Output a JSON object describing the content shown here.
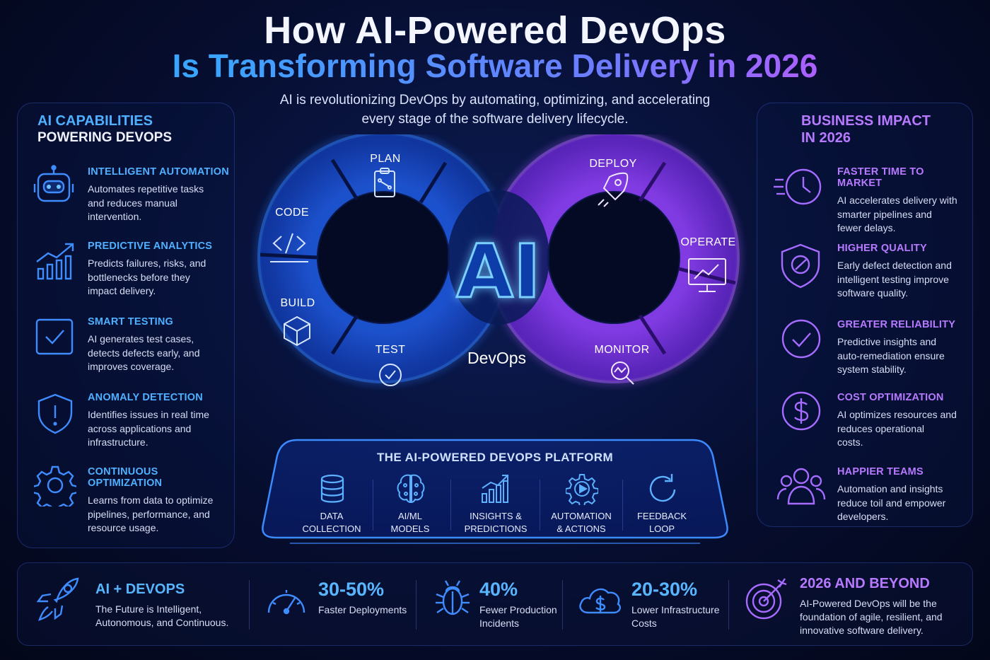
{
  "header": {
    "title_line1": "How AI-Powered DevOps",
    "title_line2": "Is Transforming Software Delivery in 2026",
    "subtitle_line1": "AI is revolutionizing DevOps by automating, optimizing, and accelerating",
    "subtitle_line2": "every stage of the software delivery lifecycle."
  },
  "left_panel": {
    "heading_line1": "AI CAPABILITIES",
    "heading_line2": "POWERING DEVOPS",
    "items": [
      {
        "icon": "robot-icon",
        "title": "Intelligent Automation",
        "desc": [
          "Automates repetitive tasks",
          "and reduces manual",
          "intervention."
        ]
      },
      {
        "icon": "analytics-icon",
        "title": "Predictive Analytics",
        "desc": [
          "Predicts failures, risks, and",
          "bottlenecks before they",
          "impact delivery."
        ]
      },
      {
        "icon": "checkbox-icon",
        "title": "Smart Testing",
        "desc": [
          "AI generates test cases,",
          "detects defects early, and",
          "improves coverage."
        ]
      },
      {
        "icon": "shield-alert-icon",
        "title": "Anomaly Detection",
        "desc": [
          "Identifies issues in real time",
          "across applications and",
          "infrastructure."
        ]
      },
      {
        "icon": "gear-icon",
        "title": "Continuous Optimization",
        "desc": [
          "Learns from data to optimize",
          "pipelines, performance, and",
          "resource usage."
        ]
      }
    ]
  },
  "right_panel": {
    "heading_line1": "BUSINESS IMPACT",
    "heading_line2": "IN 2026",
    "items": [
      {
        "icon": "fast-clock-icon",
        "title": "Faster Time to Market",
        "desc": [
          "AI accelerates delivery with",
          "smarter pipelines and",
          "fewer delays."
        ]
      },
      {
        "icon": "shield-quality-icon",
        "title": "Higher Quality",
        "desc": [
          "Early defect detection and",
          "intelligent testing improve",
          "software quality."
        ]
      },
      {
        "icon": "check-circle-icon",
        "title": "Greater Reliability",
        "desc": [
          "Predictive insights and",
          "auto-remediation ensure",
          "system stability."
        ]
      },
      {
        "icon": "dollar-circle-icon",
        "title": "Cost Optimization",
        "desc": [
          "AI optimizes resources and",
          "reduces operational",
          "costs."
        ]
      },
      {
        "icon": "team-icon",
        "title": "Happier Teams",
        "desc": [
          "Automation and insights",
          "reduce toil and empower",
          "developers."
        ]
      }
    ]
  },
  "loop": {
    "center_text": "AI",
    "label": "DevOps",
    "stages": [
      "PLAN",
      "CODE",
      "BUILD",
      "TEST",
      "DEPLOY",
      "OPERATE",
      "MONITOR"
    ]
  },
  "platform": {
    "title": "THE AI-POWERED DEVOPS PLATFORM",
    "items": [
      {
        "icon": "database-icon",
        "line1": "DATA",
        "line2": "COLLECTION"
      },
      {
        "icon": "brain-icon",
        "line1": "AI/ML",
        "line2": "MODELS"
      },
      {
        "icon": "chart-growth-icon",
        "line1": "INSIGHTS &",
        "line2": "PREDICTIONS"
      },
      {
        "icon": "gear-play-icon",
        "line1": "AUTOMATION",
        "line2": "& ACTIONS"
      },
      {
        "icon": "refresh-icon",
        "line1": "FEEDBACK",
        "line2": "LOOP"
      }
    ]
  },
  "bottom": {
    "intro": {
      "title": "AI + DEVOPS",
      "line1": "The Future is Intelligent,",
      "line2": "Autonomous, and Continuous."
    },
    "stats": [
      {
        "icon": "gauge-icon",
        "value": "30-50%",
        "line1": "Faster Deployments",
        "line2": ""
      },
      {
        "icon": "bug-icon",
        "value": "40%",
        "line1": "Fewer Production",
        "line2": "Incidents"
      },
      {
        "icon": "cloud-dollar-icon",
        "value": "20-30%",
        "line1": "Lower Infrastructure",
        "line2": "Costs"
      }
    ],
    "outro": {
      "title": "2026 AND BEYOND",
      "line1": "AI-Powered DevOps will be the",
      "line2": "foundation of agile, resilient, and",
      "line3": "innovative software delivery."
    }
  },
  "colors": {
    "blue_accent": "#4fb0ff",
    "purple_accent": "#b77aff",
    "background": "#060d2e"
  }
}
